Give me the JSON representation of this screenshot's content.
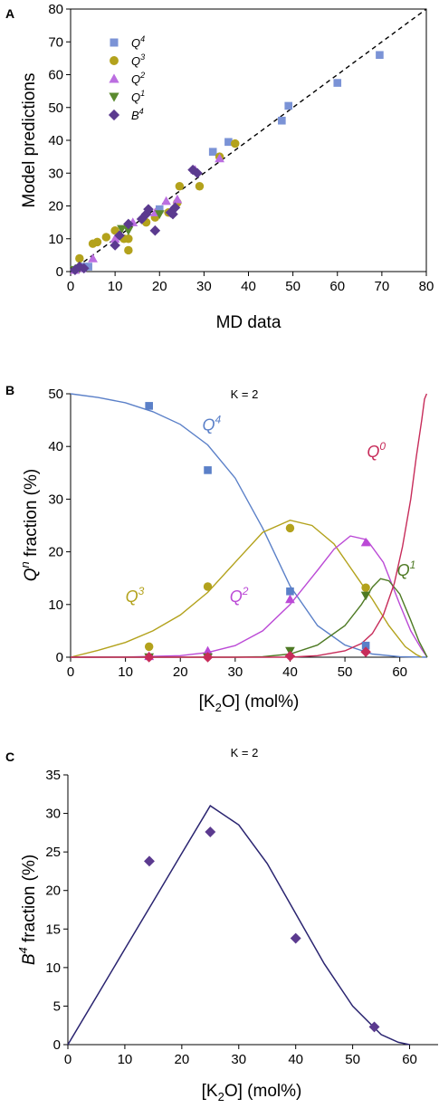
{
  "chart_data": [
    {
      "panel": "A",
      "type": "scatter",
      "title": "",
      "xlabel": "MD data",
      "ylabel": "Model predictions",
      "xlim": [
        0,
        80
      ],
      "ylim": [
        0,
        80
      ],
      "xticks": [
        "0",
        "10",
        "20",
        "30",
        "40",
        "50",
        "60",
        "70",
        "80"
      ],
      "yticks": [
        "0",
        "10",
        "20",
        "30",
        "40",
        "50",
        "60",
        "70",
        "80"
      ],
      "legend_position": "top-left",
      "reference_line": "y = x (dashed)",
      "series": [
        {
          "name": "Q4",
          "label_base": "Q",
          "label_sup": "4",
          "marker": "square",
          "color": "#7b93d6",
          "points": [
            [
              1,
              0.5
            ],
            [
              2,
              1
            ],
            [
              3,
              1.5
            ],
            [
              4,
              1.5
            ],
            [
              20,
              19
            ],
            [
              32,
              36.5
            ],
            [
              35.5,
              39.5
            ],
            [
              47.5,
              46
            ],
            [
              49,
              50.5
            ],
            [
              60,
              57.5
            ],
            [
              69.5,
              66
            ]
          ]
        },
        {
          "name": "Q3",
          "label_base": "Q",
          "label_sup": "3",
          "marker": "circle",
          "color": "#b3a21c",
          "points": [
            [
              2,
              4
            ],
            [
              5,
              8.5
            ],
            [
              6,
              9
            ],
            [
              8,
              10.5
            ],
            [
              10,
              12.5
            ],
            [
              12,
              10
            ],
            [
              13,
              6.5
            ],
            [
              13,
              10
            ],
            [
              17,
              15
            ],
            [
              19,
              16.5
            ],
            [
              22,
              18
            ],
            [
              24,
              21
            ],
            [
              24.5,
              26
            ],
            [
              29,
              26
            ],
            [
              33.5,
              35
            ],
            [
              37,
              39
            ]
          ]
        },
        {
          "name": "Q2",
          "label_base": "Q",
          "label_sup": "2",
          "marker": "triangle-up",
          "color": "#bb6ee0",
          "points": [
            [
              1,
              0.5
            ],
            [
              2.5,
              1
            ],
            [
              5,
              4
            ],
            [
              10,
              10
            ],
            [
              14,
              15
            ],
            [
              19,
              18
            ],
            [
              21.5,
              21.5
            ],
            [
              24,
              22
            ],
            [
              28,
              31
            ],
            [
              33.5,
              34.5
            ]
          ]
        },
        {
          "name": "Q1",
          "label_base": "Q",
          "label_sup": "1",
          "marker": "triangle-down",
          "color": "#5a8a2e",
          "points": [
            [
              1,
              0.5
            ],
            [
              2,
              1
            ],
            [
              11.5,
              13
            ],
            [
              13,
              12.5
            ],
            [
              20,
              17.5
            ]
          ]
        },
        {
          "name": "B4",
          "label_base": "B",
          "label_sup": "4",
          "marker": "diamond",
          "color": "#5b3a8f",
          "points": [
            [
              1,
              0.5
            ],
            [
              2,
              1.5
            ],
            [
              3,
              1
            ],
            [
              10,
              8
            ],
            [
              11,
              11
            ],
            [
              13,
              14.5
            ],
            [
              16,
              16
            ],
            [
              17,
              17.5
            ],
            [
              17.5,
              19
            ],
            [
              19,
              12.5
            ],
            [
              22.5,
              18
            ],
            [
              23,
              17.5
            ],
            [
              23.5,
              19.5
            ],
            [
              27.5,
              31
            ],
            [
              28.5,
              30
            ]
          ]
        }
      ]
    },
    {
      "panel": "B",
      "type": "line",
      "title": "K = 2",
      "xlabel_parts": [
        "[K",
        "2",
        "O] (mol%)"
      ],
      "ylabel_parts": [
        "Q",
        "n",
        " fraction (%)"
      ],
      "xlim": [
        0,
        65
      ],
      "ylim": [
        0,
        50
      ],
      "xticks": [
        "0",
        "10",
        "20",
        "30",
        "40",
        "50",
        "60"
      ],
      "yticks": [
        "0",
        "10",
        "20",
        "30",
        "40",
        "50"
      ],
      "series": [
        {
          "name": "Q4",
          "label_base": "Q",
          "label_sup": "4",
          "color": "#5b80c8",
          "marker": "square",
          "label_at": [
            24,
            43
          ],
          "curve": [
            [
              0,
              50
            ],
            [
              5,
              49.3
            ],
            [
              10,
              48.3
            ],
            [
              15,
              46.6
            ],
            [
              20,
              44.2
            ],
            [
              25,
              40.3
            ],
            [
              30,
              34
            ],
            [
              35,
              24.5
            ],
            [
              40,
              13.5
            ],
            [
              45,
              6
            ],
            [
              50,
              2.3
            ],
            [
              55,
              0.6
            ],
            [
              60,
              0.1
            ],
            [
              65,
              0
            ]
          ],
          "points": [
            [
              14.3,
              47.7
            ],
            [
              25,
              35.5
            ],
            [
              40,
              12.5
            ],
            [
              53.8,
              2.2
            ]
          ]
        },
        {
          "name": "Q3",
          "label_base": "Q",
          "label_sup": "3",
          "color": "#b3a21c",
          "marker": "circle",
          "label_at": [
            10,
            10.5
          ],
          "curve": [
            [
              0,
              0
            ],
            [
              5,
              1.3
            ],
            [
              10,
              2.8
            ],
            [
              15,
              5
            ],
            [
              20,
              8
            ],
            [
              25,
              12.3
            ],
            [
              30,
              18
            ],
            [
              35,
              23.7
            ],
            [
              40,
              26
            ],
            [
              44,
              25
            ],
            [
              48,
              21.5
            ],
            [
              52,
              15.5
            ],
            [
              55,
              11
            ],
            [
              58,
              6
            ],
            [
              61,
              2
            ],
            [
              63,
              0.5
            ],
            [
              64,
              0
            ]
          ],
          "points": [
            [
              14.3,
              2
            ],
            [
              25,
              13.4
            ],
            [
              40,
              24.5
            ],
            [
              53.8,
              13.2
            ]
          ]
        },
        {
          "name": "Q2",
          "label_base": "Q",
          "label_sup": "2",
          "color": "#bb4ad6",
          "marker": "triangle-up",
          "label_at": [
            29,
            10.5
          ],
          "curve": [
            [
              0,
              0
            ],
            [
              10,
              0.03
            ],
            [
              20,
              0.3
            ],
            [
              25,
              0.9
            ],
            [
              30,
              2.2
            ],
            [
              35,
              5
            ],
            [
              40,
              10
            ],
            [
              45,
              16.5
            ],
            [
              48,
              20.5
            ],
            [
              51,
              23
            ],
            [
              54,
              22.3
            ],
            [
              57,
              18
            ],
            [
              60,
              10
            ],
            [
              62,
              5
            ],
            [
              64,
              1.5
            ],
            [
              65,
              0
            ]
          ],
          "points": [
            [
              14.3,
              0.2
            ],
            [
              25,
              1.2
            ],
            [
              40,
              11
            ],
            [
              53.8,
              21.8
            ]
          ]
        },
        {
          "name": "Q1",
          "label_base": "Q",
          "label_sup": "1",
          "color": "#4e7a24",
          "marker": "triangle-down",
          "label_at": [
            59.5,
            15.5
          ],
          "curve": [
            [
              0,
              0
            ],
            [
              30,
              0
            ],
            [
              35,
              0.1
            ],
            [
              40,
              0.6
            ],
            [
              45,
              2.3
            ],
            [
              50,
              6
            ],
            [
              53,
              10
            ],
            [
              55,
              13.3
            ],
            [
              56.5,
              14.9
            ],
            [
              58,
              14.5
            ],
            [
              60,
              12
            ],
            [
              62,
              7
            ],
            [
              63.5,
              3
            ],
            [
              65,
              0
            ]
          ],
          "points": [
            [
              14.3,
              0
            ],
            [
              25,
              0
            ],
            [
              40,
              1.2
            ],
            [
              53.8,
              11.7
            ]
          ]
        },
        {
          "name": "Q0",
          "label_base": "Q",
          "label_sup": "0",
          "color": "#c72c5a",
          "marker": "diamond",
          "label_at": [
            54,
            38
          ],
          "curve": [
            [
              0,
              0
            ],
            [
              40,
              0
            ],
            [
              45,
              0.3
            ],
            [
              50,
              1.2
            ],
            [
              53,
              2.6
            ],
            [
              55,
              4.5
            ],
            [
              57,
              8
            ],
            [
              59,
              14
            ],
            [
              60.5,
              21
            ],
            [
              62,
              30
            ],
            [
              63,
              38
            ],
            [
              64,
              45
            ],
            [
              64.5,
              49
            ],
            [
              64.9,
              50
            ]
          ],
          "points": [
            [
              14.3,
              0
            ],
            [
              25,
              0
            ],
            [
              40,
              0.2
            ],
            [
              53.8,
              1
            ]
          ]
        }
      ]
    },
    {
      "panel": "C",
      "type": "line",
      "title": "K = 2",
      "xlabel_parts": [
        "[K",
        "2",
        "O] (mol%)"
      ],
      "ylabel_parts": [
        "B",
        "4",
        " fraction (%)"
      ],
      "xlim": [
        0,
        65
      ],
      "ylim": [
        0,
        35
      ],
      "xticks": [
        "0",
        "10",
        "20",
        "30",
        "40",
        "50",
        "60"
      ],
      "yticks": [
        "0",
        "5",
        "10",
        "15",
        "20",
        "25",
        "30",
        "35"
      ],
      "series": [
        {
          "name": "B4",
          "color": "#2a2470",
          "marker": "diamond",
          "marker_color": "#5b3a8f",
          "curve": [
            [
              0,
              0
            ],
            [
              5,
              6.2
            ],
            [
              10,
              12.4
            ],
            [
              15,
              18.6
            ],
            [
              20,
              24.8
            ],
            [
              25,
              31
            ],
            [
              30,
              28.5
            ],
            [
              35,
              23.5
            ],
            [
              40,
              17
            ],
            [
              45,
              10.5
            ],
            [
              50,
              5
            ],
            [
              55,
              1.3
            ],
            [
              58,
              0.3
            ],
            [
              60,
              0
            ]
          ],
          "points": [
            [
              14.3,
              23.8
            ],
            [
              25,
              27.6
            ],
            [
              40,
              13.8
            ],
            [
              53.8,
              2.3
            ]
          ]
        }
      ]
    }
  ],
  "panel_letters": [
    "A",
    "B",
    "C"
  ]
}
